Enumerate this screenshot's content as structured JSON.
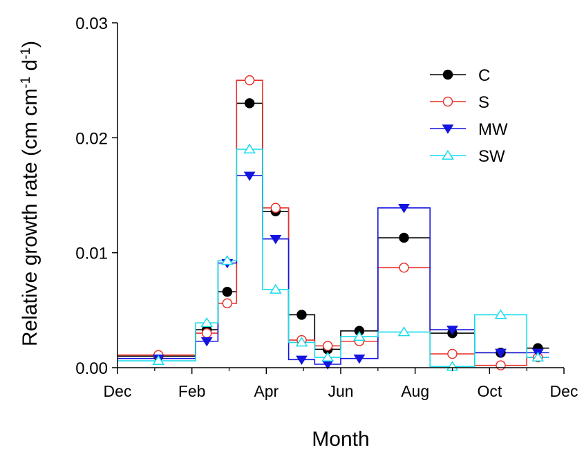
{
  "chart_data": {
    "type": "step-line",
    "xlabel": "Month",
    "ylabel": "Relative growth rate (cm cm",
    "ylabel_unit_part": " d",
    "ylabel_sup": "-1",
    "ylabel_end": ")",
    "xlim": [
      0,
      12
    ],
    "ylim": [
      0,
      0.03
    ],
    "x_ticks": [
      {
        "x": 0,
        "label": "Dec"
      },
      {
        "x": 2,
        "label": "Feb"
      },
      {
        "x": 4,
        "label": "Apr"
      },
      {
        "x": 6,
        "label": "Jun"
      },
      {
        "x": 8,
        "label": "Aug"
      },
      {
        "x": 10,
        "label": "Oct"
      },
      {
        "x": 12,
        "label": "Dec"
      }
    ],
    "y_ticks": [
      {
        "y": 0,
        "label": "0.00"
      },
      {
        "y": 0.01,
        "label": "0.01"
      },
      {
        "y": 0.02,
        "label": "0.02"
      },
      {
        "y": 0.03,
        "label": "0.03"
      }
    ],
    "grid": false,
    "legend_position": "top-right",
    "intervals": [
      [
        0,
        2.1
      ],
      [
        2.1,
        2.7
      ],
      [
        2.7,
        3.2
      ],
      [
        3.2,
        3.9
      ],
      [
        3.9,
        4.6
      ],
      [
        4.6,
        5.3
      ],
      [
        5.3,
        6.0
      ],
      [
        6.0,
        7.0
      ],
      [
        7.0,
        8.4
      ],
      [
        8.4,
        9.6
      ],
      [
        9.6,
        11.0
      ],
      [
        11.0,
        11.6
      ]
    ],
    "point_x": [
      1.1,
      2.4,
      2.95,
      3.55,
      4.25,
      4.95,
      5.65,
      6.5,
      7.7,
      9.0,
      10.3,
      11.3
    ],
    "series": [
      {
        "name": "C",
        "marker": "filled-circle",
        "color": "#000000",
        "values": [
          0.001,
          0.0033,
          0.0066,
          0.023,
          0.0136,
          0.0046,
          0.0016,
          0.0032,
          0.0113,
          0.003,
          0.0013,
          0.0017
        ]
      },
      {
        "name": "S",
        "marker": "open-circle",
        "color": "#e8322a",
        "values": [
          0.0011,
          0.003,
          0.0056,
          0.025,
          0.0139,
          0.0024,
          0.0019,
          0.0023,
          0.0087,
          0.0012,
          0.0002,
          0.0009
        ]
      },
      {
        "name": "MW",
        "marker": "filled-triangle-down",
        "color": "#1414e0",
        "values": [
          0.0008,
          0.0023,
          0.0091,
          0.0167,
          0.0112,
          0.0007,
          0.0003,
          0.0008,
          0.0139,
          0.0033,
          0.0013,
          0.0013
        ]
      },
      {
        "name": "SW",
        "marker": "open-triangle-up",
        "color": "#16dcec",
        "values": [
          0.0006,
          0.0039,
          0.0093,
          0.019,
          0.0068,
          0.0022,
          0.0009,
          0.0027,
          0.0031,
          0.0001,
          0.0046,
          0.0009
        ]
      }
    ]
  }
}
